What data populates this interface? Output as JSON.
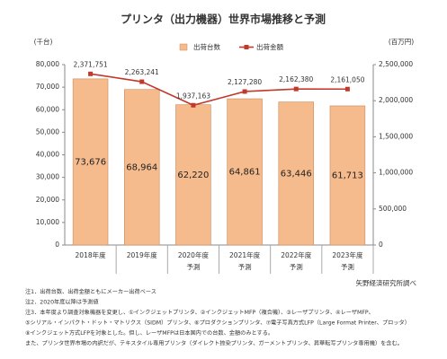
{
  "chart_data": {
    "type": "bar-line",
    "title": "プリンタ（出力機器）世界市場推移と予測",
    "y_unit": "(千台)",
    "y2_unit": "(百万円)",
    "categories": [
      [
        "2018年度"
      ],
      [
        "2019年度"
      ],
      [
        "2020年度",
        "予測"
      ],
      [
        "2021年度",
        "予測"
      ],
      [
        "2022年度",
        "予測"
      ],
      [
        "2023年度",
        "予測"
      ]
    ],
    "series": [
      {
        "name": "出荷台数",
        "type": "bar",
        "color": "#f6bb8c",
        "values": [
          73676,
          68964,
          62220,
          64861,
          63446,
          61713
        ],
        "value_labels": [
          "73,676",
          "68,964",
          "62,220",
          "64,861",
          "63,446",
          "61,713"
        ]
      },
      {
        "name": "出荷金額",
        "type": "line",
        "axis": "y2",
        "color": "#c0392b",
        "values": [
          2371751,
          2263241,
          1937163,
          2127280,
          2162380,
          2161050
        ],
        "value_labels": [
          "2,371,751",
          "2,263,241",
          "1,937,163",
          "2,127,280",
          "2,162,380",
          "2,161,050"
        ]
      }
    ],
    "ylim": [
      0,
      80000
    ],
    "yticks": [
      0,
      {
        "value": 10000,
        "label": "10,000"
      },
      {
        "value": 20000,
        "label": "20,000"
      },
      {
        "value": 30000,
        "label": "30,000"
      },
      {
        "value": 40000,
        "label": "40,000"
      },
      {
        "value": 50000,
        "label": "50,000"
      },
      {
        "value": 60000,
        "label": "60,000"
      },
      {
        "value": 70000,
        "label": "70,000"
      },
      {
        "value": 80000,
        "label": "80,000"
      }
    ],
    "y2lim": [
      0,
      2500000
    ],
    "y2ticks": [
      0,
      {
        "value": 500000,
        "label": "500,000"
      },
      {
        "value": 1000000,
        "label": "1,000,000"
      },
      {
        "value": 1500000,
        "label": "1,500,000"
      },
      {
        "value": 2000000,
        "label": "2,000,000"
      },
      {
        "value": 2500000,
        "label": "2,500,000"
      }
    ],
    "legend": "top",
    "source": "矢野経済研究所調べ",
    "notes": [
      "注1．出荷台数、出荷金額ともにメーカー出荷ベース",
      "注2．2020年度以降は予測値",
      "注3．本年度より調査対象機器を変更し、①インクジェットプリンタ、②インクジェットMFP（複合機）、③レーザプリンタ、④レーザMFP、",
      "⑤シリアル・インパクト・ドット・マトリクス（SIDM）プリンタ、⑥プロダクションプリンタ、⑦電子写真方式LFP（Large Format Printer、プロッタ）",
      "⑧インクジェット方式LFPを対象とした。但し、レーザMFPは日本国内での台数、金額のみとする。",
      "また、プリンタ世界市場の内訳だが、テキスタイル専用プリンタ（ダイレクト捺染プリンタ、ガーメントプリンタ、昇華転写プリンタ専用機）を含む。"
    ]
  }
}
